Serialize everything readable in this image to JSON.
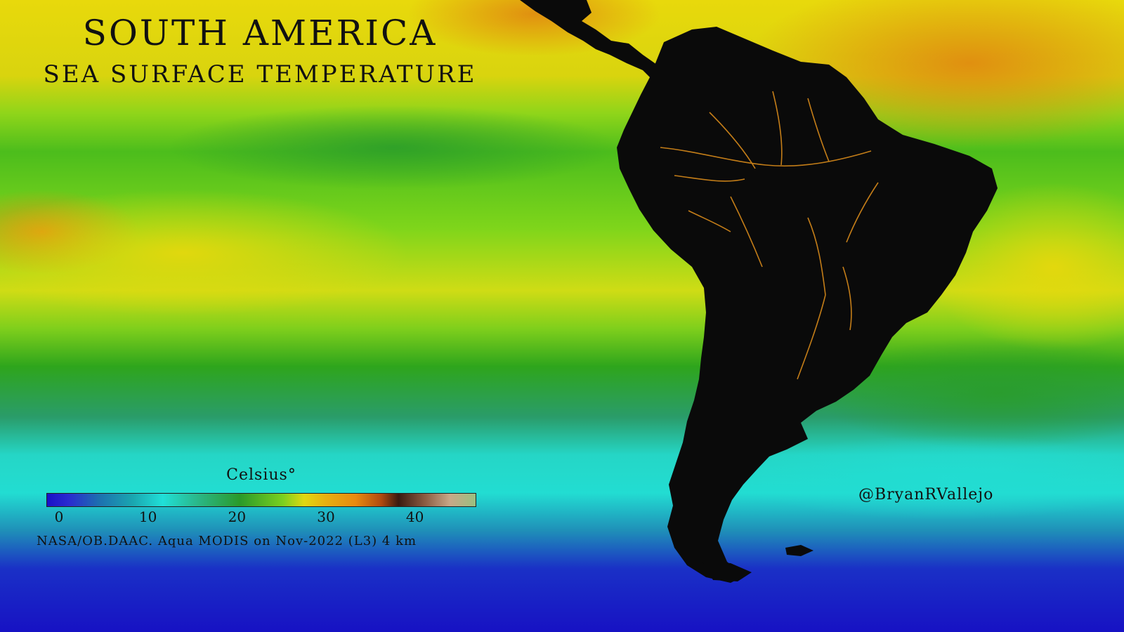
{
  "title": "SOUTH AMERICA",
  "subtitle": "SEA SURFACE TEMPERATURE",
  "legend": {
    "unit_label": "Celsius°",
    "ticks": [
      "0",
      "10",
      "20",
      "30",
      "40"
    ],
    "range": [
      0,
      45
    ]
  },
  "source_note": "NASA/OB.DAAC. Aqua MODIS on Nov-2022 (L3) 4 km",
  "credit": "@BryanRVallejo",
  "colors": {
    "land": "#0a0a0a",
    "warm_water": "#e08c10",
    "tropical_water": "#e3d70f",
    "temperate_water": "#2ea51c",
    "cool_water": "#22ddd2",
    "cold_water": "#1712c4",
    "rivers": "#d88a1a"
  }
}
